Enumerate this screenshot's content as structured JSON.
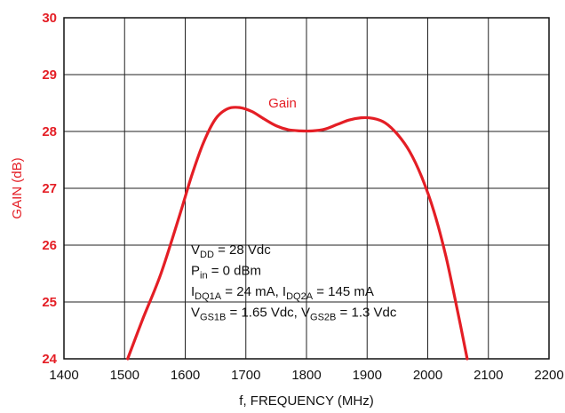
{
  "chart_data": {
    "type": "line",
    "xlabel": "f, FREQUENCY (MHz)",
    "ylabel": "GAIN (dB)",
    "xlim": [
      1400,
      2200
    ],
    "ylim": [
      24,
      30
    ],
    "x_ticks": [
      "1400",
      "1500",
      "1600",
      "1700",
      "1800",
      "1900",
      "2000",
      "2100",
      "2200"
    ],
    "y_ticks": [
      "24",
      "25",
      "26",
      "27",
      "28",
      "29",
      "30"
    ],
    "grid": true,
    "series": [
      {
        "name": "Gain",
        "color": "#e41e25",
        "x": [
          1505,
          1530,
          1560,
          1590,
          1610,
          1630,
          1650,
          1670,
          1690,
          1710,
          1730,
          1750,
          1770,
          1790,
          1810,
          1830,
          1850,
          1870,
          1890,
          1910,
          1930,
          1950,
          1970,
          1990,
          2010,
          2030,
          2050,
          2065
        ],
        "y": [
          24.0,
          24.7,
          25.5,
          26.5,
          27.2,
          27.8,
          28.22,
          28.4,
          28.42,
          28.35,
          28.22,
          28.1,
          28.03,
          28.01,
          28.01,
          28.04,
          28.12,
          28.2,
          28.24,
          28.23,
          28.15,
          27.95,
          27.65,
          27.2,
          26.6,
          25.8,
          24.8,
          24.0
        ]
      }
    ],
    "annotation": {
      "lines": [
        [
          {
            "t": "V"
          },
          {
            "t": "DD",
            "sub": true
          },
          {
            "t": " = 28 Vdc"
          }
        ],
        [
          {
            "t": "P"
          },
          {
            "t": "in",
            "sub": true
          },
          {
            "t": " = 0 dBm"
          }
        ],
        [
          {
            "t": "I"
          },
          {
            "t": "DQ1A",
            "sub": true
          },
          {
            "t": " = 24 mA, I"
          },
          {
            "t": "DQ2A",
            "sub": true
          },
          {
            "t": " = 145 mA"
          }
        ],
        [
          {
            "t": "V"
          },
          {
            "t": "GS1B",
            "sub": true
          },
          {
            "t": " = 1.65 Vdc, V"
          },
          {
            "t": "GS2B",
            "sub": true
          },
          {
            "t": " = 1.3 Vdc"
          }
        ]
      ]
    }
  }
}
